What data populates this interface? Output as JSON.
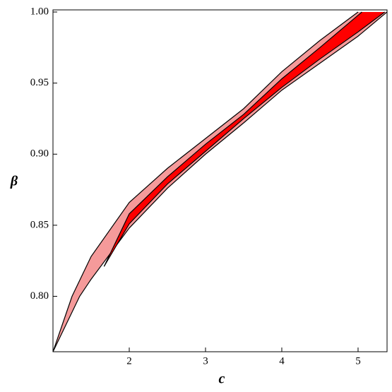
{
  "chart_data": {
    "type": "region",
    "x_label": "c",
    "y_label": "β",
    "xlim": [
      1.0,
      5.38
    ],
    "ylim": [
      0.761,
      1.0015
    ],
    "xticks": [
      2,
      3,
      4,
      5
    ],
    "yticks": [
      {
        "value": 0.8,
        "label": "0.80"
      },
      {
        "value": 0.85,
        "label": "0.85"
      },
      {
        "value": 0.9,
        "label": "0.90"
      },
      {
        "value": 0.95,
        "label": "0.95"
      },
      {
        "value": 1.0,
        "label": "1.00"
      }
    ],
    "series": [
      {
        "color": "#f59a9a",
        "upper": {
          "x": [
            1.0,
            1.25,
            1.5,
            2.0,
            2.5,
            3.0,
            3.5,
            4.0,
            4.5,
            5.0
          ],
          "y": [
            0.761,
            0.8,
            0.828,
            0.866,
            0.89,
            0.911,
            0.932,
            0.958,
            0.98,
            1.0
          ]
        },
        "lower": {
          "x": [
            5.38,
            5.0,
            4.5,
            4.0,
            3.5,
            3.0,
            2.5,
            2.0,
            1.5,
            1.35,
            1.0
          ],
          "y": [
            1.0,
            0.983,
            0.964,
            0.945,
            0.922,
            0.9,
            0.876,
            0.848,
            0.812,
            0.8,
            0.761
          ]
        }
      },
      {
        "color": "#ff0000",
        "upper": {
          "x": [
            1.67,
            2.0,
            2.5,
            3.0,
            3.5,
            4.0,
            4.5,
            5.05
          ],
          "y": [
            0.821,
            0.858,
            0.884,
            0.907,
            0.928,
            0.953,
            0.975,
            1.0
          ]
        },
        "lower": {
          "x": [
            5.35,
            5.0,
            4.5,
            4.0,
            3.5,
            3.0,
            2.5,
            2.0,
            1.67
          ],
          "y": [
            1.0,
            0.986,
            0.967,
            0.947,
            0.925,
            0.902,
            0.879,
            0.851,
            0.821
          ]
        }
      }
    ]
  }
}
